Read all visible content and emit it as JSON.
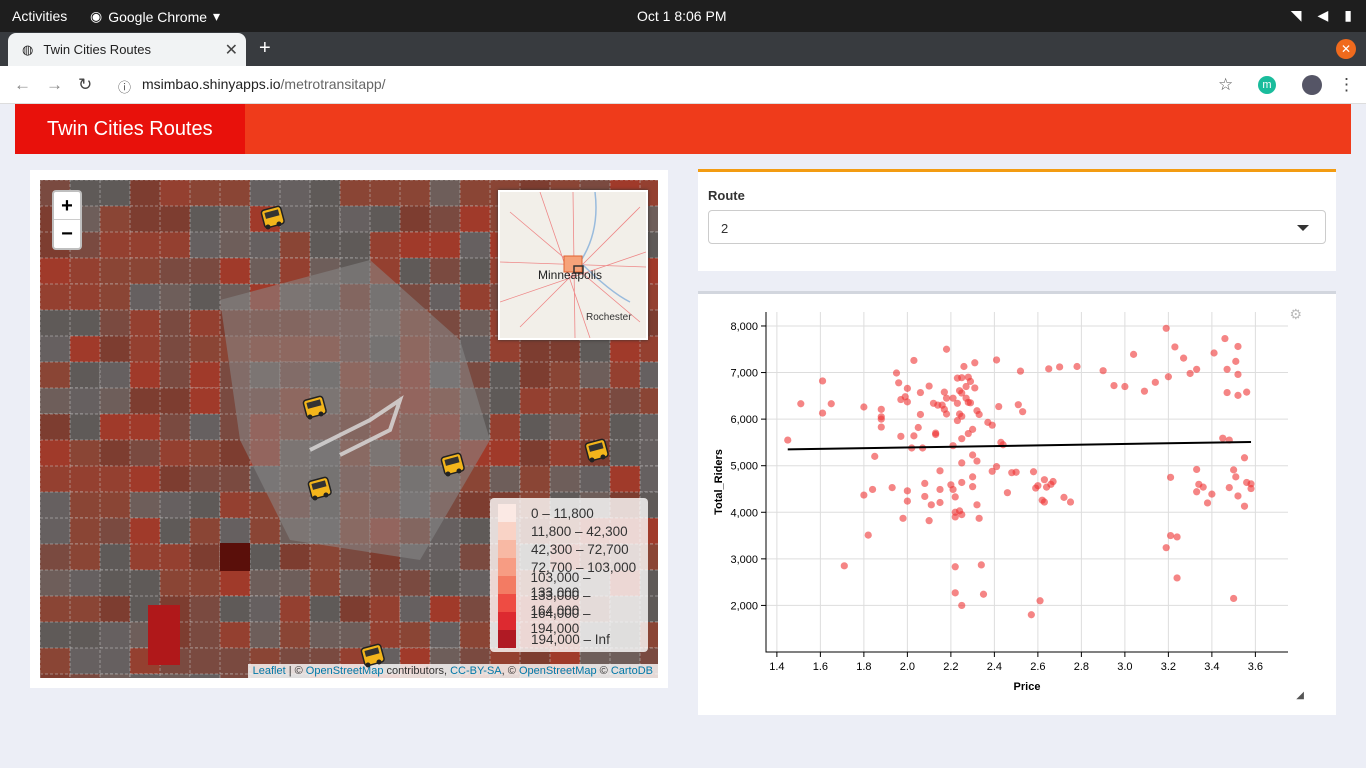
{
  "os_bar": {
    "activities": "Activities",
    "app_name": "Google Chrome",
    "clock": "Oct 1   8:06 PM"
  },
  "browser": {
    "tab_title": "Twin Cities Routes",
    "url_host": "msimbao.shinyapps.io",
    "url_path": "/metrotransitapp/",
    "profile_letter": "m"
  },
  "app": {
    "title": "Twin Cities Routes"
  },
  "map": {
    "zoom_in": "+",
    "zoom_out": "−",
    "minimap_labels": [
      "Minneapolis",
      "Rochester"
    ],
    "legend": [
      {
        "label": "0 – 11,800",
        "color": "#fbe9e4"
      },
      {
        "label": "11,800 – 42,300",
        "color": "#f9d3c6"
      },
      {
        "label": "42,300 – 72,700",
        "color": "#f8b9a4"
      },
      {
        "label": "72,700 – 103,000",
        "color": "#f79c83"
      },
      {
        "label": "103,000 – 133,000",
        "color": "#f37b63"
      },
      {
        "label": "133,000 – 164,000",
        "color": "#ee4c43"
      },
      {
        "label": "164,000 – 194,000",
        "color": "#dd2a30"
      },
      {
        "label": "194,000 – Inf",
        "color": "#b01a24"
      }
    ],
    "attribution": {
      "leaflet": "Leaflet",
      "sep1": " | © ",
      "osm1": "OpenStreetMap",
      "contrib": " contributors, ",
      "ccbysa": "CC-BY-SA",
      "sep2": ", © ",
      "osm2": "OpenStreetMap",
      "sep3": " © ",
      "carto": "CartoDB"
    }
  },
  "route": {
    "label": "Route",
    "value": "2"
  },
  "chart_data": {
    "type": "scatter",
    "xlabel": "Price",
    "ylabel": "Total_Riders",
    "xlim": [
      1.35,
      3.75
    ],
    "ylim": [
      1000,
      8300
    ],
    "xticks": [
      1.4,
      1.6,
      1.8,
      2.0,
      2.2,
      2.4,
      2.6,
      2.8,
      3.0,
      3.2,
      3.4,
      3.6
    ],
    "yticks": [
      2000,
      3000,
      4000,
      5000,
      6000,
      7000,
      8000
    ],
    "ytick_labels": [
      "2,000",
      "3,000",
      "4,000",
      "5,000",
      "6,000",
      "7,000",
      "8,000"
    ],
    "point_color": "#ee3333",
    "trend_line": [
      [
        1.45,
        5350
      ],
      [
        3.58,
        5510
      ]
    ],
    "points": [
      [
        1.45,
        5550
      ],
      [
        1.51,
        6330
      ],
      [
        1.61,
        6820
      ],
      [
        1.61,
        6130
      ],
      [
        1.65,
        6330
      ],
      [
        1.71,
        2850
      ],
      [
        1.8,
        6260
      ],
      [
        1.8,
        4370
      ],
      [
        1.82,
        3510
      ],
      [
        1.84,
        4490
      ],
      [
        1.85,
        5200
      ],
      [
        1.88,
        6050
      ],
      [
        1.88,
        6210
      ],
      [
        1.88,
        5830
      ],
      [
        1.88,
        6000
      ],
      [
        1.93,
        4530
      ],
      [
        1.95,
        6990
      ],
      [
        1.96,
        6780
      ],
      [
        1.97,
        5630
      ],
      [
        1.97,
        6420
      ],
      [
        1.98,
        3870
      ],
      [
        1.99,
        6480
      ],
      [
        2.0,
        6660
      ],
      [
        2.0,
        6370
      ],
      [
        2.0,
        4460
      ],
      [
        2.0,
        4240
      ],
      [
        2.02,
        5380
      ],
      [
        2.03,
        7260
      ],
      [
        2.03,
        5640
      ],
      [
        2.05,
        5820
      ],
      [
        2.06,
        6570
      ],
      [
        2.06,
        6100
      ],
      [
        2.07,
        5380
      ],
      [
        2.08,
        4620
      ],
      [
        2.08,
        4340
      ],
      [
        2.1,
        6710
      ],
      [
        2.1,
        3820
      ],
      [
        2.11,
        4160
      ],
      [
        2.12,
        6340
      ],
      [
        2.13,
        5700
      ],
      [
        2.13,
        5670
      ],
      [
        2.14,
        6300
      ],
      [
        2.15,
        4890
      ],
      [
        2.15,
        4490
      ],
      [
        2.15,
        4210
      ],
      [
        2.16,
        6300
      ],
      [
        2.17,
        6580
      ],
      [
        2.17,
        6210
      ],
      [
        2.18,
        6110
      ],
      [
        2.18,
        6450
      ],
      [
        2.18,
        7500
      ],
      [
        2.2,
        4590
      ],
      [
        2.21,
        6450
      ],
      [
        2.21,
        5430
      ],
      [
        2.21,
        4490
      ],
      [
        2.22,
        2830
      ],
      [
        2.22,
        4000
      ],
      [
        2.22,
        3900
      ],
      [
        2.22,
        2270
      ],
      [
        2.22,
        4330
      ],
      [
        2.23,
        6880
      ],
      [
        2.23,
        6340
      ],
      [
        2.23,
        5970
      ],
      [
        2.24,
        6610
      ],
      [
        2.24,
        6110
      ],
      [
        2.24,
        4030
      ],
      [
        2.25,
        6890
      ],
      [
        2.25,
        6560
      ],
      [
        2.25,
        6060
      ],
      [
        2.25,
        5580
      ],
      [
        2.25,
        5060
      ],
      [
        2.25,
        4640
      ],
      [
        2.25,
        3950
      ],
      [
        2.25,
        2000
      ],
      [
        2.26,
        7130
      ],
      [
        2.27,
        6700
      ],
      [
        2.27,
        6450
      ],
      [
        2.28,
        6900
      ],
      [
        2.28,
        6360
      ],
      [
        2.28,
        5690
      ],
      [
        2.29,
        6810
      ],
      [
        2.29,
        6350
      ],
      [
        2.3,
        5780
      ],
      [
        2.3,
        5230
      ],
      [
        2.3,
        4760
      ],
      [
        2.3,
        4550
      ],
      [
        2.31,
        7210
      ],
      [
        2.31,
        6670
      ],
      [
        2.32,
        6180
      ],
      [
        2.32,
        5100
      ],
      [
        2.32,
        4160
      ],
      [
        2.33,
        6100
      ],
      [
        2.33,
        3870
      ],
      [
        2.34,
        2870
      ],
      [
        2.35,
        2240
      ],
      [
        2.37,
        5930
      ],
      [
        2.39,
        5870
      ],
      [
        2.39,
        4880
      ],
      [
        2.41,
        7270
      ],
      [
        2.41,
        4980
      ],
      [
        2.42,
        6270
      ],
      [
        2.43,
        5500
      ],
      [
        2.44,
        5450
      ],
      [
        2.46,
        4420
      ],
      [
        2.48,
        4850
      ],
      [
        2.5,
        4860
      ],
      [
        2.51,
        6310
      ],
      [
        2.52,
        7030
      ],
      [
        2.53,
        6160
      ],
      [
        2.57,
        1800
      ],
      [
        2.58,
        4870
      ],
      [
        2.59,
        4520
      ],
      [
        2.6,
        4570
      ],
      [
        2.61,
        2100
      ],
      [
        2.62,
        4260
      ],
      [
        2.63,
        4700
      ],
      [
        2.63,
        4220
      ],
      [
        2.64,
        4540
      ],
      [
        2.65,
        7080
      ],
      [
        2.66,
        4600
      ],
      [
        2.67,
        4660
      ],
      [
        2.7,
        7120
      ],
      [
        2.72,
        4320
      ],
      [
        2.75,
        4220
      ],
      [
        2.78,
        7130
      ],
      [
        2.9,
        7040
      ],
      [
        2.95,
        6720
      ],
      [
        3.0,
        6700
      ],
      [
        3.04,
        7390
      ],
      [
        3.09,
        6600
      ],
      [
        3.14,
        6790
      ],
      [
        3.19,
        7950
      ],
      [
        3.2,
        6910
      ],
      [
        3.21,
        4750
      ],
      [
        3.21,
        3500
      ],
      [
        3.23,
        7550
      ],
      [
        3.24,
        3470
      ],
      [
        3.24,
        2590
      ],
      [
        3.27,
        7310
      ],
      [
        3.3,
        6980
      ],
      [
        3.33,
        7070
      ],
      [
        3.33,
        4920
      ],
      [
        3.33,
        4440
      ],
      [
        3.34,
        4600
      ],
      [
        3.36,
        4540
      ],
      [
        3.38,
        4200
      ],
      [
        3.4,
        4390
      ],
      [
        3.41,
        7420
      ],
      [
        3.45,
        5590
      ],
      [
        3.46,
        7730
      ],
      [
        3.47,
        7070
      ],
      [
        3.47,
        6570
      ],
      [
        3.48,
        4530
      ],
      [
        3.5,
        4910
      ],
      [
        3.5,
        2150
      ],
      [
        3.51,
        7240
      ],
      [
        3.51,
        4760
      ],
      [
        3.52,
        7560
      ],
      [
        3.52,
        6960
      ],
      [
        3.52,
        4350
      ],
      [
        3.52,
        6510
      ],
      [
        3.55,
        5170
      ],
      [
        3.55,
        4130
      ],
      [
        3.56,
        6580
      ],
      [
        3.56,
        4640
      ],
      [
        3.58,
        4610
      ],
      [
        3.58,
        4510
      ],
      [
        3.48,
        5550
      ],
      [
        3.19,
        3240
      ]
    ]
  }
}
